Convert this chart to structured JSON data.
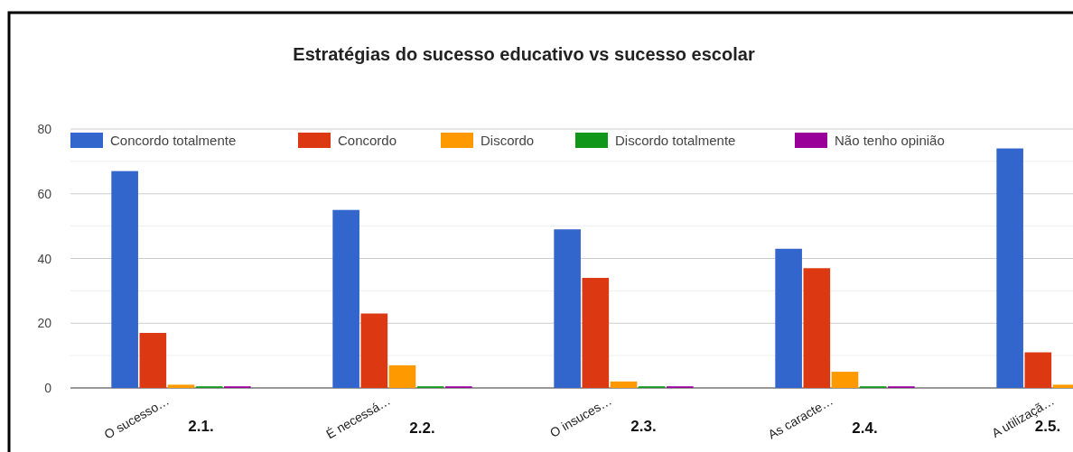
{
  "chart_data": {
    "type": "bar",
    "title": "Estratégias do sucesso educativo vs sucesso escolar",
    "categories": [
      "O sucesso…",
      "É necessá…",
      "O insuces…",
      "As caracte…",
      "A utilizaçã…"
    ],
    "series": [
      {
        "name": "Concordo totalmente",
        "color": "#3366cc",
        "values": [
          67,
          55,
          49,
          43,
          74
        ]
      },
      {
        "name": "Concordo",
        "color": "#dc3912",
        "values": [
          17,
          23,
          34,
          37,
          11
        ]
      },
      {
        "name": "Discordo",
        "color": "#ff9900",
        "values": [
          1,
          7,
          2,
          5,
          1
        ]
      },
      {
        "name": "Discordo totalmente",
        "color": "#109618",
        "values": [
          0.5,
          0.5,
          0.5,
          0.5,
          null
        ]
      },
      {
        "name": "Não tenho opinião",
        "color": "#990099",
        "values": [
          0.5,
          0.5,
          0.5,
          0.5,
          null
        ]
      }
    ],
    "ylim": [
      0,
      80
    ],
    "yticks": [
      0,
      20,
      40,
      60,
      80
    ],
    "grid": "y",
    "legend": "top",
    "annotations": [
      "2.1.",
      "2.2.",
      "2.3.",
      "2.4.",
      "2.5."
    ]
  }
}
